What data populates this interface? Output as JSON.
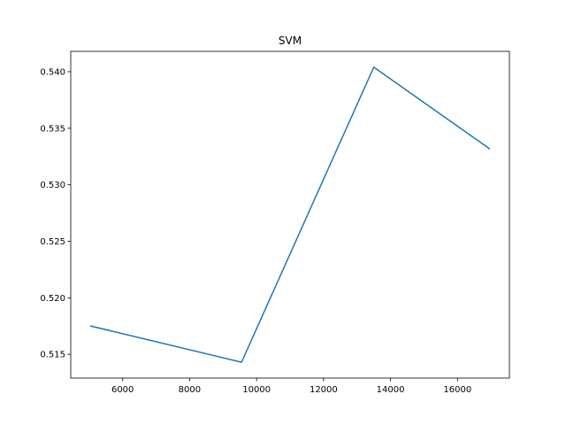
{
  "chart_data": {
    "type": "line",
    "title": "SVM",
    "xlabel": "",
    "ylabel": "",
    "grid": false,
    "xlim": [
      4450,
      17550
    ],
    "ylim": [
      0.5129,
      0.5418
    ],
    "xticks": [
      6000,
      8000,
      10000,
      12000,
      14000,
      16000
    ],
    "xtick_labels": [
      "6000",
      "8000",
      "10000",
      "12000",
      "14000",
      "16000"
    ],
    "yticks": [
      0.515,
      0.52,
      0.525,
      0.53,
      0.535,
      0.54
    ],
    "ytick_labels": [
      "0.515",
      "0.520",
      "0.525",
      "0.530",
      "0.535",
      "0.540"
    ],
    "series": [
      {
        "color": "#1f77b4",
        "x": [
          5050,
          9550,
          13500,
          16950
        ],
        "y": [
          0.5175,
          0.5143,
          0.5404,
          0.5332
        ]
      }
    ]
  }
}
